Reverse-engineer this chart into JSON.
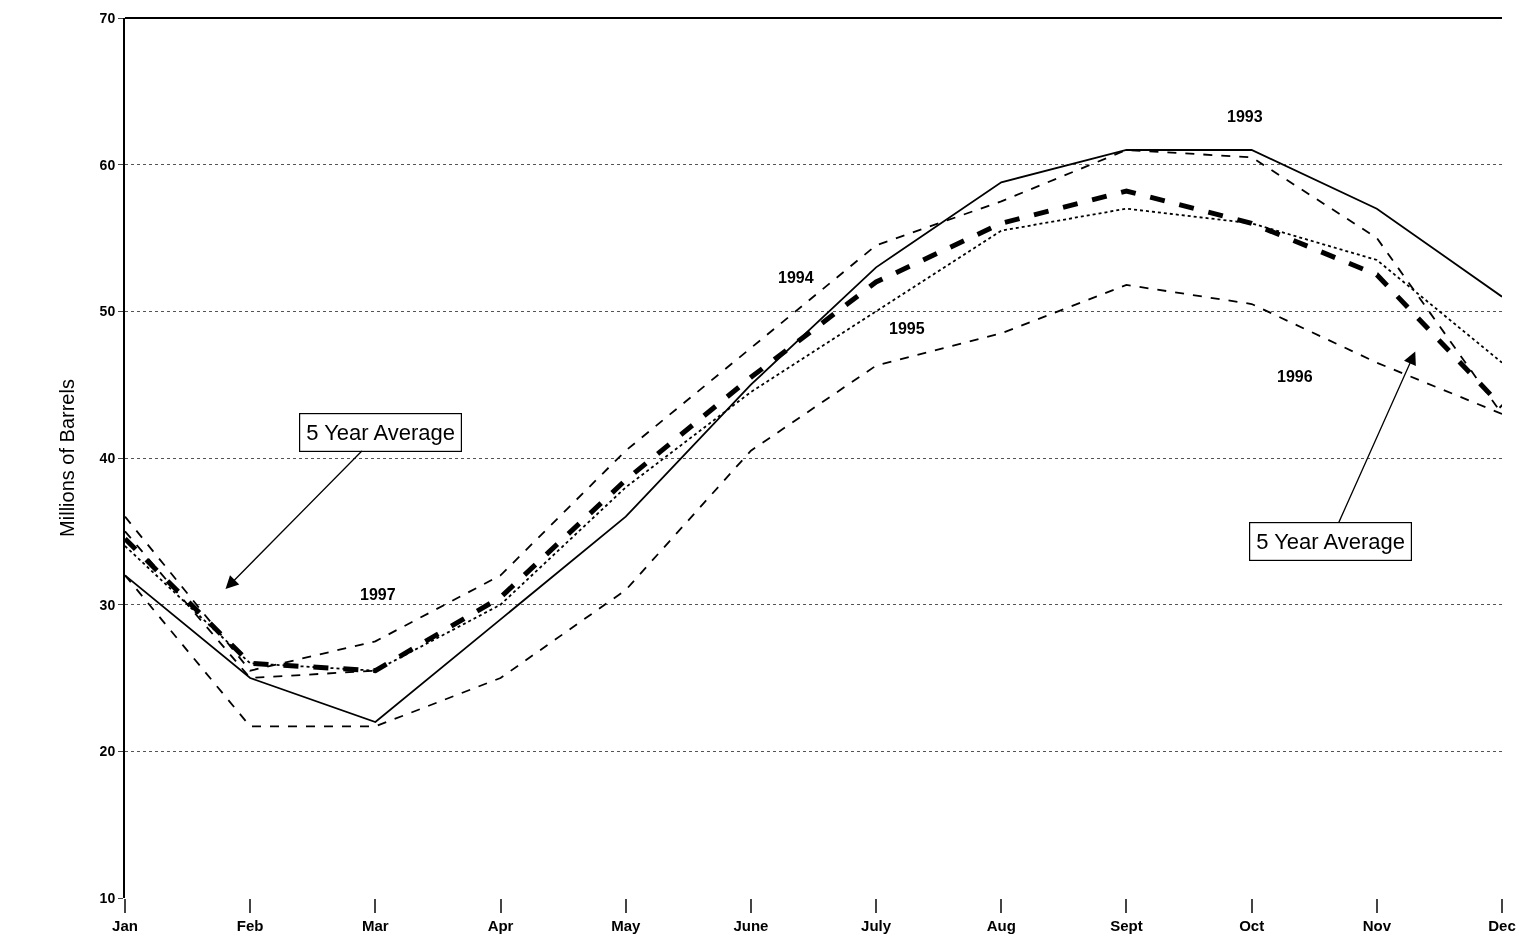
{
  "chart_data": {
    "type": "line",
    "ylabel": "Millions of Barrels",
    "categories": [
      "Jan",
      "Feb",
      "Mar",
      "Apr",
      "May",
      "June",
      "July",
      "Aug",
      "Sept",
      "Oct",
      "Nov",
      "Dec"
    ],
    "series": [
      {
        "color": "#000000",
        "line_style": "solid",
        "values": [
          32,
          25,
          22,
          29,
          36,
          45,
          53,
          58.8,
          61,
          61,
          57,
          51
        ]
      },
      {
        "color": "#000000",
        "line_style": "dashed",
        "values": [
          36,
          25.5,
          27.5,
          32,
          40.5,
          47.5,
          54.5,
          57.5,
          61,
          60.5,
          55,
          43
        ]
      },
      {
        "color": "#000000",
        "line_style": "dotted",
        "values": [
          34,
          26,
          25.5,
          30,
          38,
          44.5,
          50,
          55.5,
          57,
          56,
          53.5,
          46.5
        ]
      },
      {
        "color": "#000000",
        "line_style": "dashed",
        "values": [
          32,
          21.7,
          21.7,
          25,
          31,
          40.5,
          46.3,
          48.5,
          51.8,
          50.5,
          46.5,
          43
        ]
      },
      {
        "color": "#000000",
        "line_style": "dashed",
        "values": [
          35,
          25,
          25.5,
          null,
          null,
          null,
          null,
          null,
          null,
          null,
          null,
          null
        ]
      },
      {
        "color": "#000000",
        "line_style": "dashed",
        "values": [
          34.5,
          26,
          25.5,
          30.5,
          38.5,
          45.5,
          52,
          56,
          58.2,
          56,
          52.5,
          43.5
        ]
      }
    ],
    "annotations": [
      "5 Year Average",
      "5 Year Average",
      "1993",
      "1994",
      "1995",
      "1996",
      "1997"
    ],
    "ylim": [
      10,
      70
    ],
    "yticks": [
      10,
      20,
      30,
      40,
      50,
      60,
      70
    ],
    "grid": "y"
  }
}
